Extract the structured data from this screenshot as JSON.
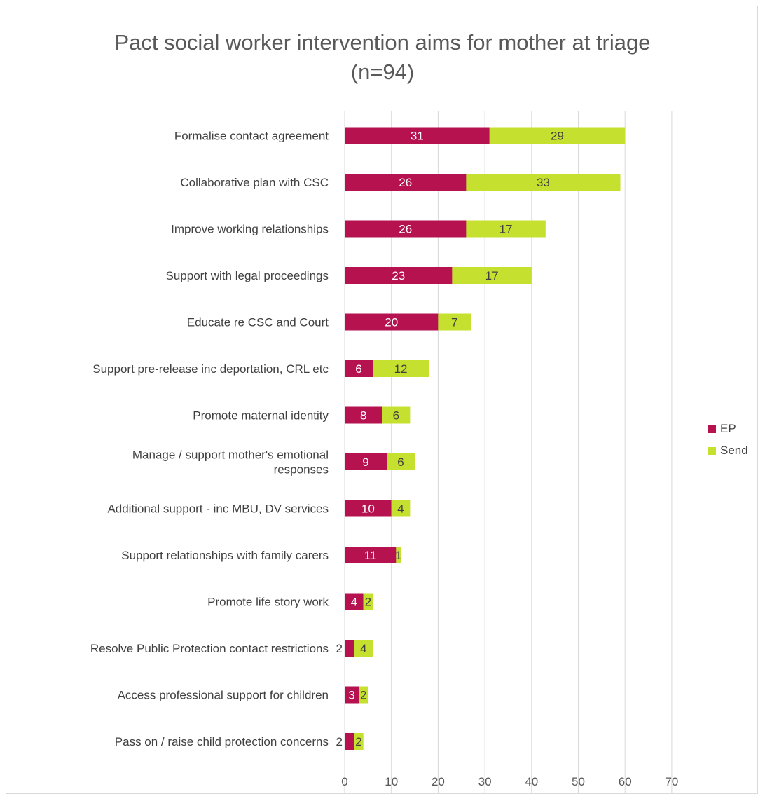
{
  "chart_data": {
    "type": "bar",
    "orientation": "horizontal",
    "stacked": true,
    "title": "Pact social worker intervention aims for mother at triage (n=94)",
    "title_lines": [
      "Pact social worker intervention aims for mother at triage",
      "(n=94)"
    ],
    "categories": [
      [
        "Formalise contact agreement"
      ],
      [
        "Collaborative plan with CSC"
      ],
      [
        "Improve working relationships"
      ],
      [
        "Support with legal proceedings"
      ],
      [
        "Educate re CSC and Court"
      ],
      [
        "Support pre-release inc deportation, CRL etc"
      ],
      [
        "Promote maternal identity"
      ],
      [
        "Manage / support mother's emotional",
        "responses"
      ],
      [
        "Additional support - inc MBU, DV services"
      ],
      [
        "Support relationships with family carers"
      ],
      [
        "Promote life story work"
      ],
      [
        "Resolve Public Protection contact restrictions"
      ],
      [
        "Access professional support for children"
      ],
      [
        "Pass on / raise child protection concerns"
      ]
    ],
    "series": [
      {
        "name": "EP",
        "color": "#b5124f",
        "label_color": "#ffffff",
        "values": [
          31,
          26,
          26,
          23,
          20,
          6,
          8,
          9,
          10,
          11,
          4,
          2,
          3,
          2
        ]
      },
      {
        "name": "Send",
        "color": "#c5e02e",
        "label_color": "#404040",
        "values": [
          29,
          33,
          17,
          17,
          7,
          12,
          6,
          6,
          4,
          1,
          2,
          4,
          2,
          2
        ]
      }
    ],
    "xlim": [
      0,
      70
    ],
    "xticks": [
      0,
      10,
      20,
      30,
      40,
      50,
      60,
      70
    ],
    "grid": true,
    "legend_position": "right",
    "xlabel": "",
    "ylabel": ""
  }
}
